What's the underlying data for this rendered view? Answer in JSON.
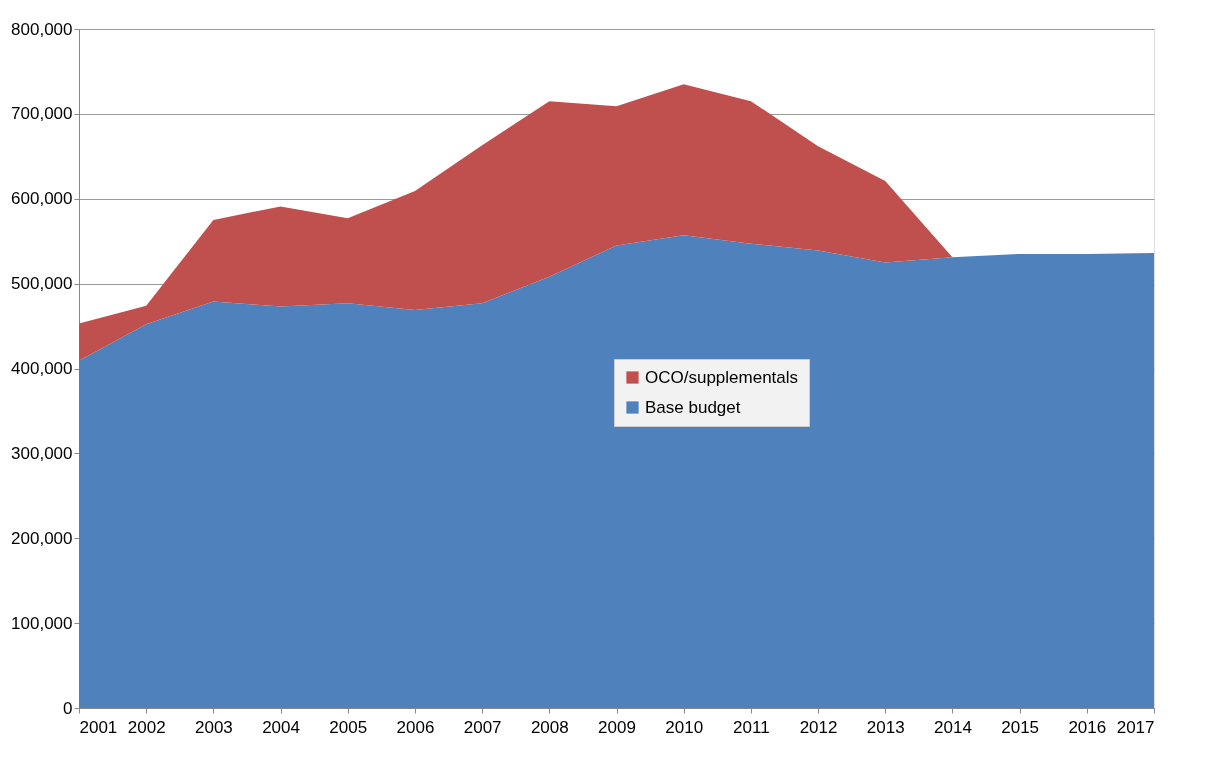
{
  "chart_data": {
    "type": "area",
    "stacked": true,
    "categories": [
      "2001",
      "2002",
      "2003",
      "2004",
      "2005",
      "2006",
      "2007",
      "2008",
      "2009",
      "2010",
      "2011",
      "2012",
      "2013",
      "2014",
      "2015",
      "2016",
      "2017"
    ],
    "series": [
      {
        "name": "Base budget",
        "color": "#4f81bd",
        "values": [
          409000,
          452000,
          479000,
          473000,
          477000,
          469000,
          477000,
          508000,
          545000,
          557000,
          547000,
          539000,
          525000,
          531000,
          535000,
          535000,
          536000
        ]
      },
      {
        "name": "OCO/supplementals",
        "color": "#c0504d",
        "values": [
          44000,
          22000,
          96000,
          118000,
          100000,
          140000,
          186000,
          207000,
          164000,
          178000,
          168000,
          123000,
          96000,
          0,
          0,
          0,
          0
        ]
      }
    ],
    "ylim": [
      0,
      800000
    ],
    "yticks": [
      0,
      {
        "value": 100000,
        "label": "100,000"
      },
      {
        "value": 200000,
        "label": "200,000"
      },
      {
        "value": 300000,
        "label": "300,000"
      },
      {
        "value": 400000,
        "label": "400,000"
      },
      {
        "value": 500000,
        "label": "500,000"
      },
      {
        "value": 600000,
        "label": "600,000"
      },
      {
        "value": 700000,
        "label": "700,000"
      },
      {
        "value": 800000,
        "label": "800,000"
      }
    ],
    "grid": "y",
    "legend": "center"
  }
}
